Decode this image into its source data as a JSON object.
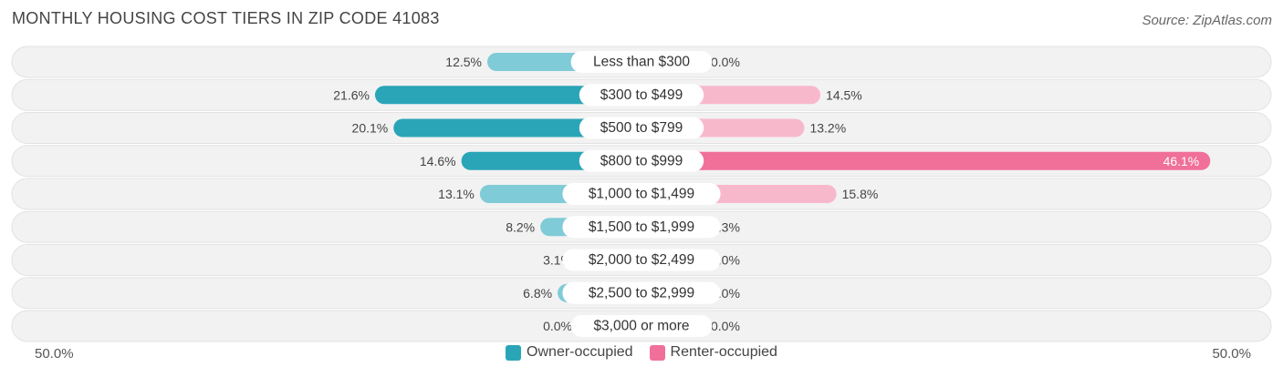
{
  "header": {
    "title": "MONTHLY HOUSING COST TIERS IN ZIP CODE 41083",
    "source": "Source: ZipAtlas.com"
  },
  "axis": {
    "left_label": "50.0%",
    "right_label": "50.0%"
  },
  "legend": {
    "owner_label": "Owner-occupied",
    "renter_label": "Renter-occupied"
  },
  "colors": {
    "owner_dark": "#2aa5b8",
    "owner_light": "#7fcbd7",
    "renter_dark": "#f0709a",
    "renter_light": "#f8b8cc",
    "row_bg": "#f2f2f2",
    "row_border": "#e2e2e2"
  },
  "chart_data": {
    "type": "bar",
    "orientation": "horizontal-diverging",
    "categories": [
      "Less than $300",
      "$300 to $499",
      "$500 to $799",
      "$800 to $999",
      "$1,000 to $1,499",
      "$1,500 to $1,999",
      "$2,000 to $2,499",
      "$2,500 to $2,999",
      "$3,000 or more"
    ],
    "series": [
      {
        "name": "Owner-occupied",
        "values": [
          12.5,
          21.6,
          20.1,
          14.6,
          13.1,
          8.2,
          3.1,
          6.8,
          0.0
        ],
        "labels": [
          "12.5%",
          "21.6%",
          "20.1%",
          "14.6%",
          "13.1%",
          "8.2%",
          "3.1%",
          "6.8%",
          "0.0%"
        ]
      },
      {
        "name": "Renter-occupied",
        "values": [
          0.0,
          14.5,
          13.2,
          46.1,
          15.8,
          1.3,
          0.0,
          0.0,
          0.0
        ],
        "labels": [
          "0.0%",
          "14.5%",
          "13.2%",
          "46.1%",
          "15.8%",
          "1.3%",
          "0.0%",
          "0.0%",
          "0.0%"
        ]
      }
    ],
    "xlim": [
      -50,
      50
    ],
    "legend_position": "bottom-center"
  }
}
